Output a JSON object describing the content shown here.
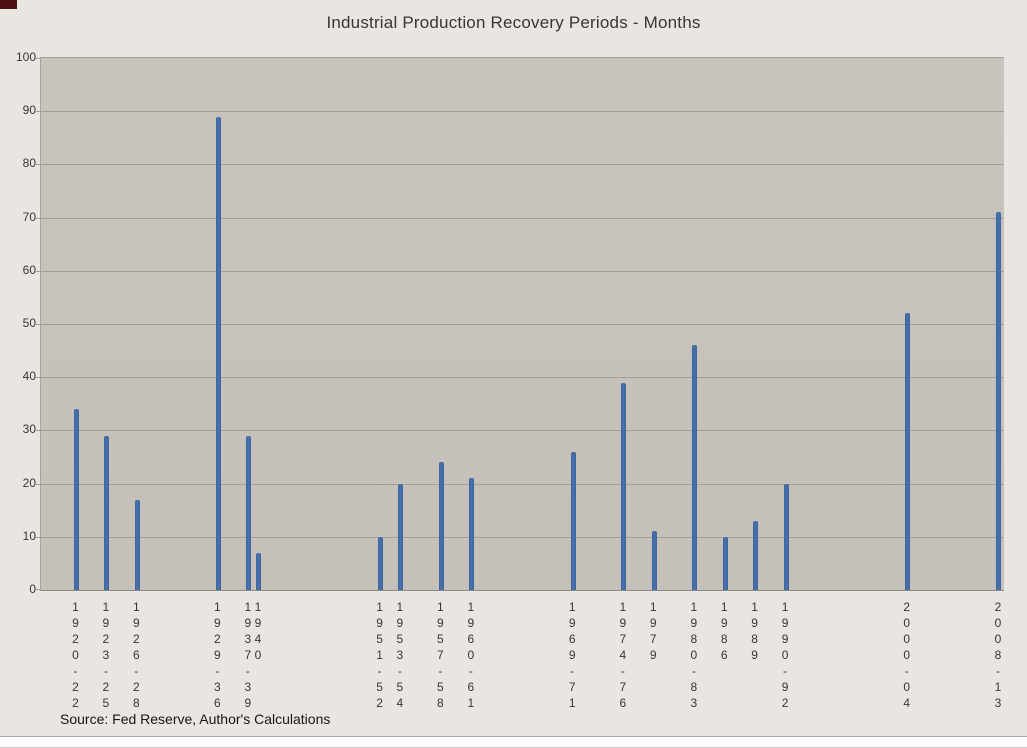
{
  "chart_data": {
    "type": "bar",
    "title": "Industrial Production Recovery Periods - Months",
    "source_note": "Source: Fed Reserve, Author's Calculations",
    "xlabel": "",
    "ylabel": "",
    "ylim": [
      0,
      100
    ],
    "yticks": [
      0,
      10,
      20,
      30,
      40,
      50,
      60,
      70,
      80,
      90,
      100
    ],
    "grid": true,
    "legend": "none",
    "x_axis_type": "year-category",
    "axis_year_range": [
      1919,
      2013
    ],
    "categories": [
      "1920-22",
      "1923-25",
      "1926-28",
      "1929-36",
      "1937-39",
      "1940",
      "1951-52",
      "1953-54",
      "1957-58",
      "1960-61",
      "1969-71",
      "1974-76",
      "1979",
      "1980-83",
      "1986",
      "1989",
      "1990-92",
      "2000-04",
      "2008-13"
    ],
    "values": [
      34,
      29,
      17,
      89,
      29,
      7,
      10,
      20,
      24,
      21,
      26,
      39,
      11,
      46,
      10,
      13,
      20,
      52,
      71
    ],
    "end_years": [
      1922,
      1925,
      1928,
      1936,
      1939,
      1940,
      1952,
      1954,
      1958,
      1961,
      1971,
      1976,
      1979,
      1983,
      1986,
      1989,
      1992,
      2004,
      2013
    ],
    "colors": {
      "bar": "#4673ab",
      "bar_edge": "#3c639c",
      "plot_bg": "#c9c3bd",
      "gridline": "#a49e98",
      "axis_line": "#8f8a85",
      "page_bg": "#e9e5e1",
      "text": "#3a3530",
      "source_text": "#161616",
      "corner_mark": "#4e0f10",
      "bottom_strip": "#fefefe"
    }
  }
}
